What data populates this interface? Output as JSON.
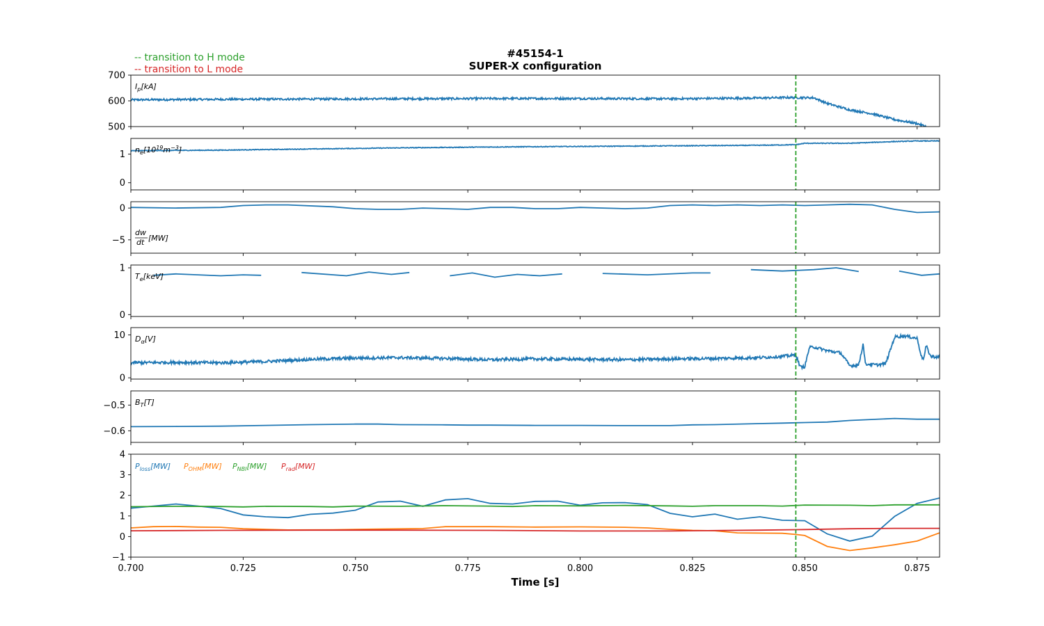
{
  "chart_data": {
    "type": "line",
    "title": [
      "#45154-1",
      "SUPER-X configuration"
    ],
    "xlabel": "Time [s]",
    "xlim": [
      0.7,
      0.88
    ],
    "xticks": [
      0.7,
      0.725,
      0.75,
      0.775,
      0.8,
      0.825,
      0.85,
      0.875
    ],
    "xtick_labels": [
      "0.700",
      "0.725",
      "0.750",
      "0.775",
      "0.800",
      "0.825",
      "0.850",
      "0.875"
    ],
    "legend": [
      {
        "text": "-- transition to H mode",
        "color": "#2ca02c"
      },
      {
        "text": "-- transition to L mode",
        "color": "#d62728"
      }
    ],
    "vlines": [
      {
        "x": 0.848,
        "color": "#2ca02c",
        "style": "dashed"
      }
    ],
    "panels": [
      {
        "id": "ip",
        "label": {
          "sym": "I",
          "sub": "p",
          "unit": "[kA]"
        },
        "ylim": [
          500,
          700
        ],
        "yticks": [
          500,
          600,
          700
        ],
        "ytick_labels": [
          "500",
          "600",
          "700"
        ],
        "grid": false,
        "series": [
          {
            "color": "#1f77b4",
            "noise": 4,
            "x": [
              0.7,
              0.71,
              0.72,
              0.74,
              0.76,
              0.78,
              0.8,
              0.82,
              0.84,
              0.846,
              0.852,
              0.855,
              0.86,
              0.865,
              0.87,
              0.875,
              0.877
            ],
            "y": [
              604,
              605,
              606,
              607,
              608,
              609,
              609,
              608,
              611,
              613,
              612,
              590,
              565,
              550,
              527,
              512,
              500
            ]
          }
        ]
      },
      {
        "id": "ne",
        "label": {
          "sym": "n",
          "sub": "e",
          "unit": "[10",
          "sup": "19",
          "unit2": "m",
          "sup2": "−3",
          "unit3": "]"
        },
        "ylim": [
          -0.25,
          1.55
        ],
        "yticks": [
          0,
          1
        ],
        "ytick_labels": [
          "0",
          "1"
        ],
        "grid": false,
        "series": [
          {
            "color": "#1f77b4",
            "noise": 0.012,
            "x": [
              0.7,
              0.72,
              0.74,
              0.76,
              0.78,
              0.8,
              0.82,
              0.84,
              0.848,
              0.85,
              0.86,
              0.87,
              0.875,
              0.88
            ],
            "y": [
              1.12,
              1.14,
              1.18,
              1.22,
              1.25,
              1.27,
              1.29,
              1.31,
              1.33,
              1.38,
              1.38,
              1.44,
              1.46,
              1.46
            ]
          }
        ]
      },
      {
        "id": "dwdt",
        "label": {
          "frac_num": "dw",
          "frac_den": "dt",
          "unit": "[MW]"
        },
        "ylim": [
          -7.1,
          1.0
        ],
        "yticks": [
          -5,
          0
        ],
        "ytick_labels": [
          "−5",
          "0"
        ],
        "grid": false,
        "series": [
          {
            "color": "#1f77b4",
            "noise": 0,
            "x": [
              0.7,
              0.71,
              0.72,
              0.725,
              0.73,
              0.735,
              0.745,
              0.75,
              0.755,
              0.76,
              0.765,
              0.77,
              0.775,
              0.78,
              0.785,
              0.79,
              0.795,
              0.8,
              0.805,
              0.81,
              0.815,
              0.82,
              0.825,
              0.83,
              0.835,
              0.84,
              0.845,
              0.85,
              0.855,
              0.86,
              0.865,
              0.87,
              0.875,
              0.88
            ],
            "y": [
              0.1,
              0.0,
              0.1,
              0.4,
              0.5,
              0.5,
              0.2,
              -0.1,
              -0.2,
              -0.2,
              0.0,
              -0.1,
              -0.2,
              0.1,
              0.1,
              -0.1,
              -0.1,
              0.1,
              0.0,
              -0.1,
              0.0,
              0.4,
              0.5,
              0.4,
              0.5,
              0.4,
              0.5,
              0.4,
              0.5,
              0.6,
              0.5,
              -0.2,
              -0.7,
              -0.6
            ]
          }
        ]
      },
      {
        "id": "te",
        "label": {
          "sym": "T",
          "sub": "e",
          "unit": "[keV]"
        },
        "ylim": [
          -0.04,
          1.06
        ],
        "yticks": [
          0,
          1
        ],
        "ytick_labels": [
          "0",
          "1"
        ],
        "grid": false,
        "series": [
          {
            "color": "#1f77b4",
            "noise": 0,
            "x": [
              0.705,
              0.71,
              0.72,
              0.725,
              0.729
            ],
            "y": [
              0.84,
              0.87,
              0.83,
              0.85,
              0.84
            ]
          },
          {
            "color": "#1f77b4",
            "noise": 0,
            "x": [
              0.738,
              0.748,
              0.753,
              0.758,
              0.762
            ],
            "y": [
              0.9,
              0.83,
              0.91,
              0.86,
              0.9
            ]
          },
          {
            "color": "#1f77b4",
            "noise": 0,
            "x": [
              0.771,
              0.776,
              0.781,
              0.786,
              0.791,
              0.796
            ],
            "y": [
              0.83,
              0.89,
              0.8,
              0.86,
              0.83,
              0.87
            ]
          },
          {
            "color": "#1f77b4",
            "noise": 0,
            "x": [
              0.805,
              0.815,
              0.825,
              0.829
            ],
            "y": [
              0.88,
              0.85,
              0.89,
              0.89
            ]
          },
          {
            "color": "#1f77b4",
            "noise": 0,
            "x": [
              0.838,
              0.845,
              0.852,
              0.857,
              0.862
            ],
            "y": [
              0.96,
              0.93,
              0.96,
              1.0,
              0.92
            ]
          },
          {
            "color": "#1f77b4",
            "noise": 0,
            "x": [
              0.871,
              0.876,
              0.88
            ],
            "y": [
              0.93,
              0.84,
              0.87
            ]
          }
        ]
      },
      {
        "id": "dalpha",
        "label": {
          "sym": "D",
          "sub": "α",
          "unit": "[V]"
        },
        "ylim": [
          -0.3,
          11.7
        ],
        "yticks": [
          0,
          10
        ],
        "ytick_labels": [
          "0",
          "10"
        ],
        "grid": false,
        "series": [
          {
            "color": "#1f77b4",
            "noise": 0.35,
            "x": [
              0.7,
              0.71,
              0.72,
              0.73,
              0.74,
              0.75,
              0.76,
              0.77,
              0.78,
              0.79,
              0.8,
              0.81,
              0.82,
              0.83,
              0.84,
              0.845,
              0.848,
              0.849,
              0.85,
              0.851,
              0.852,
              0.855,
              0.858,
              0.86,
              0.862,
              0.863,
              0.8635,
              0.864,
              0.866,
              0.868,
              0.87,
              0.872,
              0.875,
              0.876,
              0.8765,
              0.877,
              0.878,
              0.879,
              0.88
            ],
            "y": [
              3.5,
              3.6,
              3.5,
              3.8,
              4.3,
              4.6,
              4.7,
              4.5,
              4.2,
              4.4,
              4.3,
              4.2,
              4.4,
              4.5,
              4.7,
              5.0,
              5.3,
              2.5,
              2.6,
              7.0,
              7.2,
              6.3,
              5.8,
              2.8,
              3.0,
              8.0,
              3.0,
              3.2,
              3.0,
              3.3,
              9.5,
              9.8,
              9.2,
              4.8,
              4.5,
              7.5,
              5.0,
              4.9,
              4.8
            ]
          }
        ]
      },
      {
        "id": "bt",
        "label": {
          "sym": "B",
          "sub": "T",
          "unit": "[T]"
        },
        "ylim": [
          -0.645,
          -0.445
        ],
        "yticks": [
          -0.6,
          -0.5
        ],
        "ytick_labels": [
          "−0.6",
          "−0.5"
        ],
        "grid": false,
        "series": [
          {
            "color": "#1f77b4",
            "noise": 0,
            "x": [
              0.7,
              0.71,
              0.72,
              0.73,
              0.74,
              0.75,
              0.755,
              0.76,
              0.77,
              0.775,
              0.78,
              0.79,
              0.8,
              0.81,
              0.82,
              0.825,
              0.83,
              0.84,
              0.845,
              0.85,
              0.855,
              0.86,
              0.87,
              0.875,
              0.88
            ],
            "y": [
              -0.584,
              -0.583,
              -0.582,
              -0.579,
              -0.576,
              -0.574,
              -0.574,
              -0.576,
              -0.577,
              -0.578,
              -0.578,
              -0.579,
              -0.579,
              -0.58,
              -0.58,
              -0.577,
              -0.576,
              -0.572,
              -0.57,
              -0.568,
              -0.566,
              -0.56,
              -0.552,
              -0.555,
              -0.555
            ]
          }
        ]
      },
      {
        "id": "power",
        "label": null,
        "ylim": [
          -1,
          4
        ],
        "yticks": [
          -1,
          0,
          1,
          2,
          3,
          4
        ],
        "ytick_labels": [
          "−1",
          "0",
          "1",
          "2",
          "3",
          "4"
        ],
        "grid": false,
        "legend_inline": [
          {
            "sym": "P",
            "sub": "loss",
            "unit": "[MW]",
            "color": "#1f77b4"
          },
          {
            "sym": "P",
            "sub": "OHM",
            "unit": "[MW]",
            "color": "#ff7f0e"
          },
          {
            "sym": "P",
            "sub": "NBI",
            "unit": "[MW]",
            "color": "#2ca02c"
          },
          {
            "sym": "P",
            "sub": "rad",
            "unit": "[MW]",
            "color": "#d62728"
          }
        ],
        "series": [
          {
            "name": "Ploss",
            "color": "#1f77b4",
            "noise": 0,
            "x": [
              0.7,
              0.705,
              0.71,
              0.715,
              0.72,
              0.725,
              0.73,
              0.735,
              0.74,
              0.745,
              0.75,
              0.755,
              0.76,
              0.765,
              0.77,
              0.775,
              0.78,
              0.785,
              0.79,
              0.795,
              0.8,
              0.805,
              0.81,
              0.815,
              0.82,
              0.825,
              0.83,
              0.835,
              0.84,
              0.845,
              0.85,
              0.855,
              0.86,
              0.865,
              0.87,
              0.875,
              0.88
            ],
            "y": [
              1.38,
              1.48,
              1.58,
              1.48,
              1.36,
              1.05,
              0.96,
              0.92,
              1.08,
              1.14,
              1.28,
              1.68,
              1.72,
              1.47,
              1.78,
              1.84,
              1.61,
              1.58,
              1.71,
              1.72,
              1.52,
              1.64,
              1.65,
              1.55,
              1.13,
              0.96,
              1.09,
              0.84,
              0.96,
              0.79,
              0.77,
              0.13,
              -0.22,
              0.02,
              0.98,
              1.61,
              1.87
            ]
          },
          {
            "name": "POHM",
            "color": "#ff7f0e",
            "noise": 0,
            "x": [
              0.7,
              0.705,
              0.71,
              0.715,
              0.72,
              0.725,
              0.735,
              0.745,
              0.755,
              0.765,
              0.77,
              0.78,
              0.79,
              0.8,
              0.81,
              0.815,
              0.82,
              0.825,
              0.83,
              0.835,
              0.845,
              0.848,
              0.85,
              0.855,
              0.86,
              0.865,
              0.87,
              0.875,
              0.88
            ],
            "y": [
              0.42,
              0.48,
              0.49,
              0.46,
              0.45,
              0.38,
              0.32,
              0.33,
              0.36,
              0.39,
              0.48,
              0.48,
              0.46,
              0.47,
              0.45,
              0.42,
              0.35,
              0.3,
              0.28,
              0.18,
              0.16,
              0.1,
              0.05,
              -0.48,
              -0.68,
              -0.55,
              -0.4,
              -0.22,
              0.18
            ]
          },
          {
            "name": "PNBI",
            "color": "#2ca02c",
            "noise": 0,
            "x": [
              0.7,
              0.71,
              0.72,
              0.725,
              0.73,
              0.74,
              0.745,
              0.75,
              0.76,
              0.77,
              0.78,
              0.785,
              0.79,
              0.8,
              0.81,
              0.82,
              0.825,
              0.83,
              0.84,
              0.845,
              0.85,
              0.86,
              0.865,
              0.87,
              0.88
            ],
            "y": [
              1.45,
              1.47,
              1.46,
              1.44,
              1.47,
              1.46,
              1.44,
              1.48,
              1.47,
              1.5,
              1.48,
              1.46,
              1.5,
              1.49,
              1.51,
              1.49,
              1.47,
              1.5,
              1.5,
              1.48,
              1.53,
              1.52,
              1.5,
              1.54,
              1.54
            ]
          },
          {
            "name": "Prad",
            "color": "#d62728",
            "noise": 0,
            "x": [
              0.7,
              0.72,
              0.74,
              0.76,
              0.78,
              0.8,
              0.82,
              0.84,
              0.85,
              0.86,
              0.87,
              0.88
            ],
            "y": [
              0.28,
              0.3,
              0.31,
              0.31,
              0.3,
              0.27,
              0.27,
              0.31,
              0.34,
              0.38,
              0.4,
              0.4
            ]
          }
        ]
      }
    ]
  }
}
